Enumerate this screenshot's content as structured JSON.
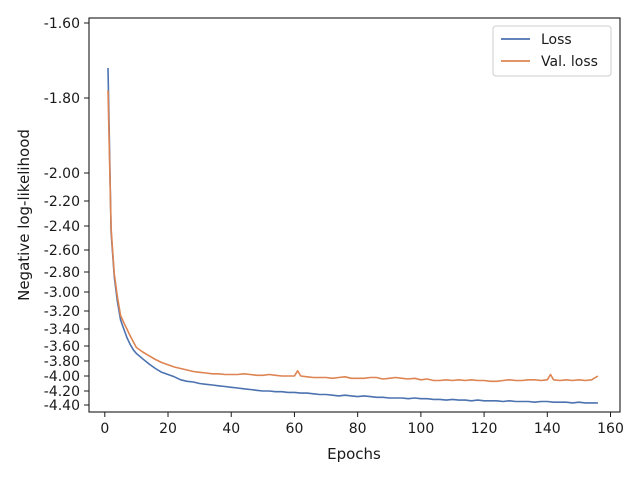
{
  "chart_data": {
    "type": "line",
    "title": "",
    "xlabel": "Epochs",
    "ylabel": "Negative log-likelihood",
    "xlim": [
      -5,
      163
    ],
    "ylim": [
      -4.48,
      -1.57
    ],
    "y_scale": "custom-compressed (tick spacing non-uniform, as printed)",
    "x_ticks": [
      0,
      20,
      40,
      60,
      80,
      100,
      120,
      140,
      160
    ],
    "x_tick_labels": [
      "0",
      "20",
      "40",
      "60",
      "80",
      "100",
      "120",
      "140",
      "160"
    ],
    "y_ticks": [
      -1.6,
      -1.8,
      -2.0,
      -2.2,
      -2.4,
      -2.6,
      -2.8,
      -3.0,
      -3.2,
      -3.4,
      -3.6,
      -3.8,
      -4.0,
      -4.2,
      -4.4
    ],
    "y_tick_labels": [
      "-1.60",
      "-1.80",
      "-2.00",
      "-2.20",
      "-2.40",
      "-2.60",
      "-2.80",
      "-3.00",
      "-3.20",
      "-3.40",
      "-3.60",
      "-3.80",
      "-4.00",
      "-4.20",
      "-4.40"
    ],
    "grid": false,
    "legend_position": "top-right",
    "series": [
      {
        "name": "Loss",
        "color": "#4c72b0",
        "x": [
          1,
          2,
          3,
          4,
          5,
          6,
          7,
          8,
          9,
          10,
          12,
          14,
          16,
          18,
          20,
          22,
          24,
          26,
          28,
          30,
          32,
          34,
          36,
          38,
          40,
          42,
          44,
          46,
          48,
          50,
          52,
          54,
          56,
          58,
          60,
          62,
          64,
          66,
          68,
          70,
          72,
          74,
          76,
          78,
          80,
          82,
          84,
          86,
          88,
          90,
          92,
          94,
          96,
          98,
          100,
          102,
          104,
          106,
          108,
          110,
          112,
          114,
          116,
          118,
          120,
          122,
          124,
          126,
          128,
          130,
          132,
          134,
          136,
          138,
          140,
          142,
          144,
          146,
          148,
          150,
          152,
          154,
          156
        ],
        "values": [
          -1.72,
          -2.45,
          -2.85,
          -3.1,
          -3.3,
          -3.4,
          -3.5,
          -3.58,
          -3.65,
          -3.7,
          -3.77,
          -3.84,
          -3.9,
          -3.95,
          -3.98,
          -4.01,
          -4.05,
          -4.07,
          -4.08,
          -4.1,
          -4.11,
          -4.12,
          -4.13,
          -4.14,
          -4.15,
          -4.16,
          -4.17,
          -4.18,
          -4.19,
          -4.2,
          -4.2,
          -4.21,
          -4.21,
          -4.22,
          -4.22,
          -4.23,
          -4.23,
          -4.24,
          -4.25,
          -4.25,
          -4.26,
          -4.27,
          -4.26,
          -4.27,
          -4.28,
          -4.27,
          -4.28,
          -4.29,
          -4.29,
          -4.3,
          -4.3,
          -4.3,
          -4.31,
          -4.3,
          -4.31,
          -4.31,
          -4.32,
          -4.32,
          -4.33,
          -4.32,
          -4.33,
          -4.33,
          -4.34,
          -4.33,
          -4.34,
          -4.34,
          -4.34,
          -4.35,
          -4.34,
          -4.35,
          -4.35,
          -4.35,
          -4.36,
          -4.35,
          -4.35,
          -4.36,
          -4.36,
          -4.36,
          -4.37,
          -4.36,
          -4.37,
          -4.37,
          -4.37
        ]
      },
      {
        "name": "Val. loss",
        "color": "#dd8452",
        "x": [
          1,
          2,
          3,
          4,
          5,
          6,
          7,
          8,
          9,
          10,
          12,
          14,
          16,
          18,
          20,
          22,
          24,
          26,
          28,
          30,
          32,
          34,
          36,
          38,
          40,
          42,
          44,
          46,
          48,
          50,
          52,
          54,
          56,
          58,
          60,
          61,
          62,
          64,
          66,
          68,
          70,
          72,
          74,
          76,
          78,
          80,
          82,
          84,
          86,
          88,
          90,
          92,
          94,
          96,
          98,
          100,
          102,
          104,
          106,
          108,
          110,
          112,
          114,
          116,
          118,
          120,
          122,
          124,
          126,
          128,
          130,
          132,
          134,
          136,
          138,
          140,
          141,
          142,
          144,
          146,
          148,
          150,
          152,
          154,
          156
        ],
        "values": [
          -1.78,
          -2.42,
          -2.82,
          -3.05,
          -3.25,
          -3.33,
          -3.4,
          -3.48,
          -3.55,
          -3.62,
          -3.68,
          -3.73,
          -3.78,
          -3.82,
          -3.85,
          -3.88,
          -3.9,
          -3.92,
          -3.94,
          -3.95,
          -3.96,
          -3.97,
          -3.97,
          -3.98,
          -3.98,
          -3.98,
          -3.97,
          -3.98,
          -3.99,
          -3.99,
          -3.98,
          -3.99,
          -4.0,
          -4.0,
          -4.0,
          -3.93,
          -4.0,
          -4.01,
          -4.02,
          -4.02,
          -4.02,
          -4.03,
          -4.02,
          -4.01,
          -4.03,
          -4.03,
          -4.03,
          -4.02,
          -4.02,
          -4.04,
          -4.03,
          -4.02,
          -4.03,
          -4.04,
          -4.03,
          -4.05,
          -4.04,
          -4.06,
          -4.06,
          -4.05,
          -4.06,
          -4.05,
          -4.06,
          -4.05,
          -4.06,
          -4.06,
          -4.07,
          -4.07,
          -4.06,
          -4.05,
          -4.06,
          -4.06,
          -4.05,
          -4.05,
          -4.06,
          -4.05,
          -3.98,
          -4.05,
          -4.06,
          -4.05,
          -4.06,
          -4.05,
          -4.06,
          -4.05,
          -4.0
        ]
      }
    ]
  }
}
